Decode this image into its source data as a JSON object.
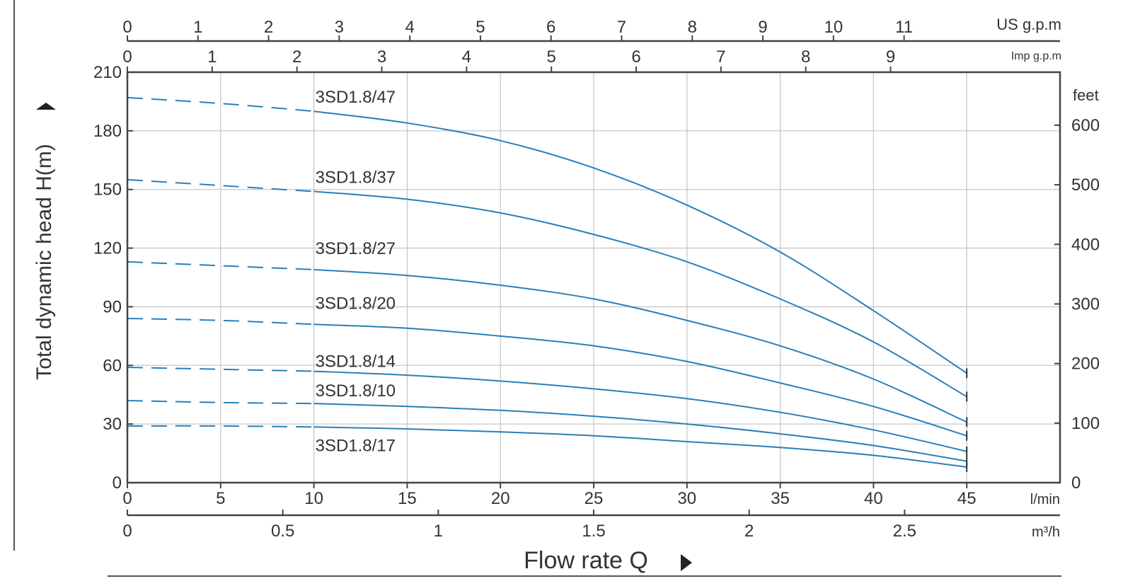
{
  "chart_data": {
    "type": "line",
    "ylabel": "Total dynamic head H(m)",
    "xlabel": "Flow rate Q",
    "x_unit": "l/min",
    "xlim": [
      0,
      50
    ],
    "ylim": [
      0,
      210
    ],
    "x_ticks": [
      0,
      5,
      10,
      15,
      20,
      25,
      30,
      35,
      40,
      45
    ],
    "y_ticks": [
      0,
      30,
      60,
      90,
      120,
      150,
      180,
      210
    ],
    "secondary_axes": {
      "m3h": {
        "unit": "m³/h",
        "ticks": [
          0,
          0.5,
          1,
          1.5,
          2,
          2.5
        ]
      },
      "us_gpm": {
        "unit": "US g.p.m",
        "ticks": [
          0,
          1,
          2,
          3,
          4,
          5,
          6,
          7,
          8,
          9,
          10,
          11
        ]
      },
      "imp_gpm": {
        "unit": "Imp g.p.m",
        "ticks": [
          0,
          1,
          2,
          3,
          4,
          5,
          6,
          7,
          8,
          9
        ]
      },
      "feet": {
        "unit": "feet",
        "ticks": [
          0,
          100,
          200,
          300,
          400,
          500,
          600
        ]
      }
    },
    "dashed_until_x": 10,
    "line_color": "#2b7fb8",
    "grid": true,
    "series": [
      {
        "name": "3SD1.8/47",
        "x": [
          0,
          5,
          10,
          15,
          20,
          25,
          30,
          35,
          40,
          45
        ],
        "values": [
          197,
          194,
          190,
          184,
          175,
          161,
          142,
          118,
          88,
          56
        ]
      },
      {
        "name": "3SD1.8/37",
        "x": [
          0,
          5,
          10,
          15,
          20,
          25,
          30,
          35,
          40,
          45
        ],
        "values": [
          155,
          152,
          149,
          145,
          138,
          127,
          113,
          94,
          72,
          44
        ]
      },
      {
        "name": "3SD1.8/27",
        "x": [
          0,
          5,
          10,
          15,
          20,
          25,
          30,
          35,
          40,
          45
        ],
        "values": [
          113,
          111,
          109,
          106,
          101,
          94,
          83,
          70,
          53,
          31
        ]
      },
      {
        "name": "3SD1.8/20",
        "x": [
          0,
          5,
          10,
          15,
          20,
          25,
          30,
          35,
          40,
          45
        ],
        "values": [
          84,
          83,
          81,
          79,
          75,
          70,
          62,
          51,
          39,
          24
        ]
      },
      {
        "name": "3SD1.8/14",
        "x": [
          0,
          5,
          10,
          15,
          20,
          25,
          30,
          35,
          40,
          45
        ],
        "values": [
          59,
          58,
          57,
          55,
          52,
          48,
          43,
          36,
          27,
          16
        ]
      },
      {
        "name": "3SD1.8/10",
        "x": [
          0,
          5,
          10,
          15,
          20,
          25,
          30,
          35,
          40,
          45
        ],
        "values": [
          42,
          41,
          40.5,
          39,
          37,
          34,
          30,
          25,
          19,
          11
        ]
      },
      {
        "name": "3SD1.8/17",
        "x": [
          0,
          5,
          10,
          15,
          20,
          25,
          30,
          35,
          40,
          45
        ],
        "values": [
          29,
          29,
          28.5,
          27.5,
          26,
          24,
          21,
          18,
          14,
          8
        ]
      }
    ]
  }
}
